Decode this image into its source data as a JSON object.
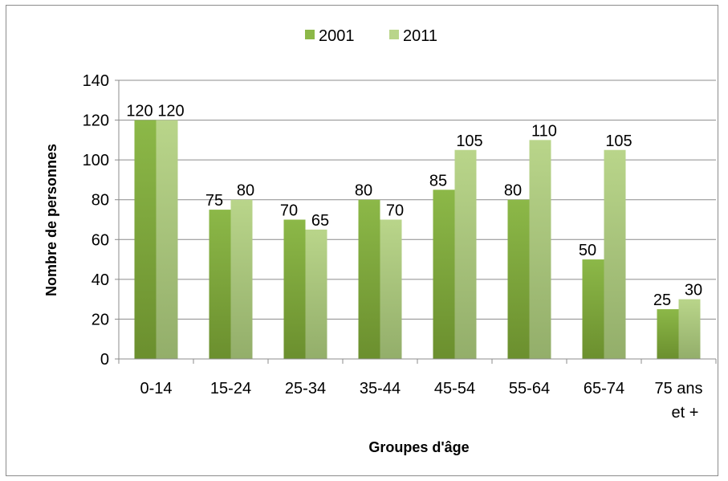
{
  "chart_data": {
    "type": "bar",
    "title": "",
    "xlabel": "Groupes d'âge",
    "ylabel": "Nombre de personnes",
    "ylim": [
      0,
      140
    ],
    "yticks": [
      "0",
      "20",
      "40",
      "60",
      "80",
      "100",
      "120",
      "140"
    ],
    "categories": [
      "0-14",
      "15-24",
      "25-34",
      "35-44",
      "45-54",
      "55-64",
      "65-74",
      "75 ans et +"
    ],
    "category_lines": [
      [
        "0-14"
      ],
      [
        "15-24"
      ],
      [
        "25-34"
      ],
      [
        "35-44"
      ],
      [
        "45-54"
      ],
      [
        "55-64"
      ],
      [
        "65-74"
      ],
      [
        "75 ans",
        "et +"
      ]
    ],
    "series": [
      {
        "name": "2001",
        "values": [
          120,
          75,
          70,
          80,
          85,
          80,
          50,
          25
        ],
        "color_top": "#8cb848",
        "color_bottom": "#6b8f2e"
      },
      {
        "name": "2011",
        "values": [
          120,
          80,
          65,
          70,
          105,
          110,
          105,
          30
        ],
        "color_top": "#b9d58a",
        "color_bottom": "#93ae6a"
      }
    ],
    "grid": true,
    "gridline_color": "#8c8c8c",
    "legend_position": "top-center",
    "data_labels": true
  }
}
